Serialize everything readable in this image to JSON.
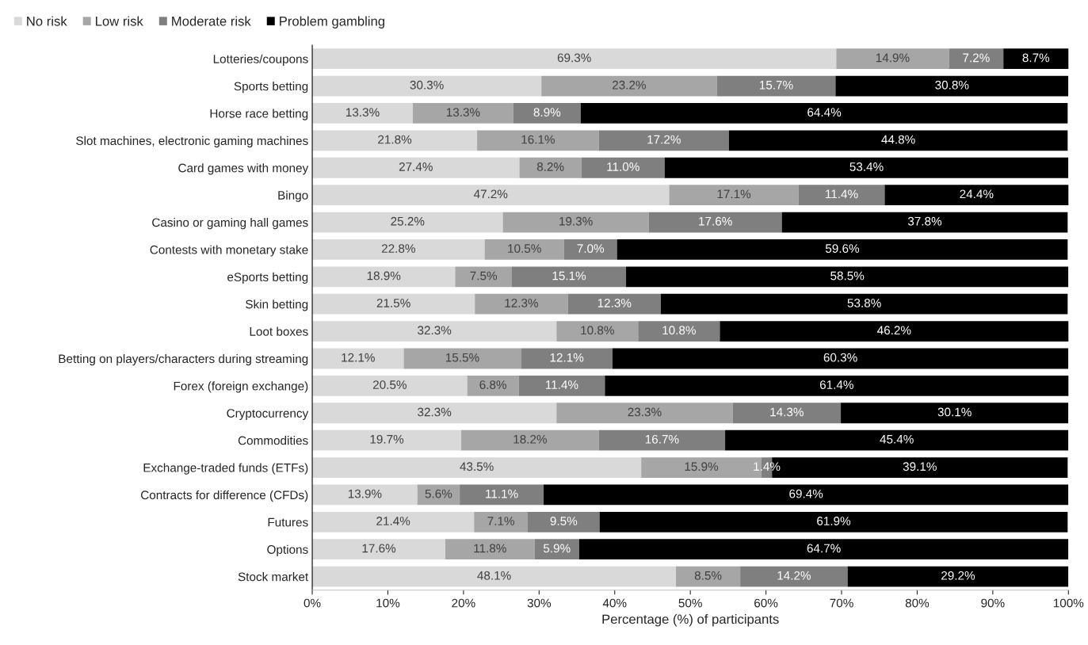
{
  "chart_data": {
    "type": "bar",
    "orientation": "horizontal",
    "stacked": true,
    "xlabel": "Percentage (%) of participants",
    "categories": [
      "Lotteries/coupons",
      "Sports betting",
      "Horse race betting",
      "Slot machines, electronic gaming machines",
      "Card games with money",
      "Bingo",
      "Casino or gaming hall games",
      "Contests with monetary stake",
      "eSports betting",
      "Skin betting",
      "Loot boxes",
      "Betting on players/characters during streaming",
      "Forex (foreign exchange)",
      "Cryptocurrency",
      "Commodities",
      "Exchange-traded funds (ETFs)",
      "Contracts for difference (CFDs)",
      "Futures",
      "Options",
      "Stock market"
    ],
    "series": [
      {
        "name": "No risk",
        "color": "#d9d9d9",
        "values": [
          69.3,
          30.3,
          13.3,
          21.8,
          27.4,
          47.2,
          25.2,
          22.8,
          18.9,
          21.5,
          32.3,
          12.1,
          20.5,
          32.3,
          19.7,
          43.5,
          13.9,
          21.4,
          17.6,
          48.1
        ],
        "value_labels": [
          "69.3%",
          "30.3%",
          "13.3%",
          "21.8%",
          "27.4%",
          "47.2%",
          "25.2%",
          "22.8%",
          "18.9%",
          "21.5%",
          "32.3%",
          "12.1%",
          "20.5%",
          "32.3%",
          "19.7%",
          "43.5%",
          "13.9%",
          "21.4%",
          "17.6%",
          "48.1%"
        ]
      },
      {
        "name": "Low risk",
        "color": "#a6a6a6",
        "values": [
          14.9,
          23.2,
          13.3,
          16.1,
          8.2,
          17.1,
          19.3,
          10.5,
          7.5,
          12.3,
          10.8,
          15.5,
          6.8,
          23.3,
          18.2,
          15.9,
          5.6,
          7.1,
          11.8,
          8.5
        ],
        "value_labels": [
          "14.9%",
          "23.2%",
          "13.3%",
          "16.1%",
          "8.2%",
          "17.1%",
          "19.3%",
          "10.5%",
          "7.5%",
          "12.3%",
          "10.8%",
          "15.5%",
          "6.8%",
          "23.3%",
          "18.2%",
          "15.9%",
          "5.6%",
          "7.1%",
          "11.8%",
          "8.5%"
        ]
      },
      {
        "name": "Moderate risk",
        "color": "#7f7f7f",
        "values": [
          7.2,
          15.7,
          8.9,
          17.2,
          11.0,
          11.4,
          17.6,
          7.0,
          15.1,
          12.3,
          10.8,
          12.1,
          11.4,
          14.3,
          16.7,
          1.4,
          11.1,
          9.5,
          5.9,
          14.2
        ],
        "value_labels": [
          "7.2%",
          "15.7%",
          "8.9%",
          "17.2%",
          "11.0%",
          "11.4%",
          "17.6%",
          "7.0%",
          "15.1%",
          "12.3%",
          "10.8%",
          "12.1%",
          "11.4%",
          "14.3%",
          "16.7%",
          "1.4%",
          "11.1%",
          "9.5%",
          "5.9%",
          "14.2%"
        ]
      },
      {
        "name": "Problem gambling",
        "color": "#000000",
        "values": [
          8.7,
          30.8,
          64.4,
          44.8,
          53.4,
          24.4,
          37.8,
          59.6,
          58.5,
          53.8,
          46.2,
          60.3,
          61.4,
          30.1,
          45.4,
          39.1,
          69.4,
          61.9,
          64.7,
          29.2
        ],
        "value_labels": [
          "8.7%",
          "30.8%",
          "64.4%",
          "44.8%",
          "53.4%",
          "24.4%",
          "37.8%",
          "59.6%",
          "58.5%",
          "53.8%",
          "46.2%",
          "60.3%",
          "61.4%",
          "30.1%",
          "45.4%",
          "39.1%",
          "69.4%",
          "61.9%",
          "64.7%",
          "29.2%"
        ]
      }
    ],
    "xlim": [
      0,
      100
    ],
    "xticks": [
      {
        "value": 0,
        "label": "0%"
      },
      {
        "value": 10,
        "label": "10%"
      },
      {
        "value": 20,
        "label": "20%"
      },
      {
        "value": 30,
        "label": "30%"
      },
      {
        "value": 40,
        "label": "40%"
      },
      {
        "value": 50,
        "label": "50%"
      },
      {
        "value": 60,
        "label": "60%"
      },
      {
        "value": 70,
        "label": "70%"
      },
      {
        "value": 80,
        "label": "80%"
      },
      {
        "value": 90,
        "label": "90%"
      },
      {
        "value": 100,
        "label": "100%"
      }
    ],
    "grid": false,
    "legend": "top left"
  }
}
